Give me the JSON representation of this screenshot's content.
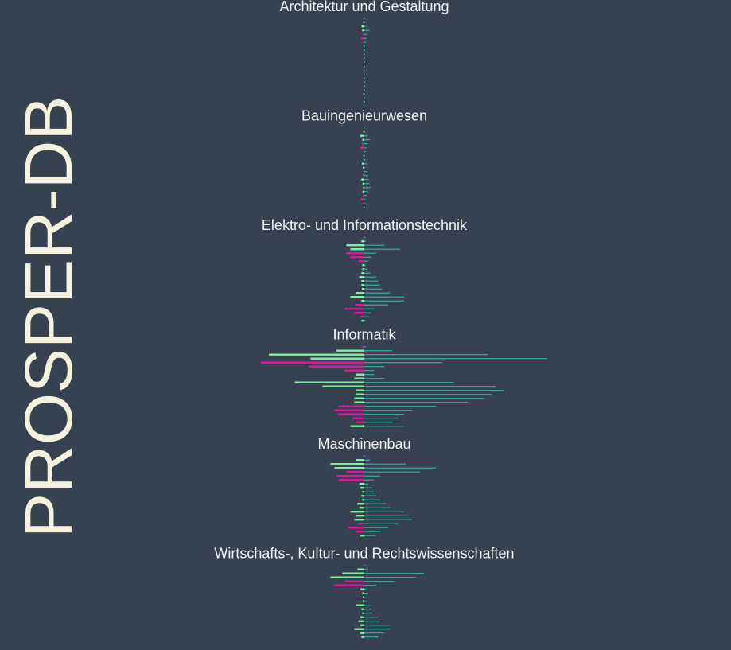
{
  "brand": {
    "title": "PROSPER-DB"
  },
  "colors": {
    "background": "#37414f",
    "green": "#7ef0a2",
    "magenta": "#e0169b",
    "teal": "#2cb5a0",
    "title_text": "#f2f2f2",
    "brand_text": "#f5f1df"
  },
  "chart_data": {
    "type": "bar",
    "orientation": "horizontal",
    "grid": false,
    "legend": "none",
    "series_roles": {
      "left_green": "#7ef0a2",
      "left_magenta": "#e0169b",
      "right_teal": "#2cb5a0"
    },
    "facets": [
      {
        "title": "Architektur und Gestaltung",
        "rows": [
          {
            "l": 0.3,
            "c": "m",
            "r": 0.4
          },
          {
            "l": 0.5,
            "c": "g",
            "r": 0.6
          },
          {
            "l": 1.4,
            "c": "g",
            "r": 1.1
          },
          {
            "l": 1.1,
            "c": "g",
            "r": 2.7
          },
          {
            "l": 0.7,
            "c": "m",
            "r": 1.5
          },
          {
            "l": 1.6,
            "c": "m",
            "r": 1.2
          },
          {
            "l": 0.6,
            "c": "m",
            "r": 0.9
          },
          {
            "l": 0.4,
            "c": "g",
            "r": 0.3
          },
          {
            "l": 0.2,
            "c": "g",
            "r": 0.2
          },
          {
            "l": 0.2,
            "c": "g",
            "r": 0.2
          },
          {
            "l": 0.2,
            "c": "g",
            "r": 0.3
          },
          {
            "l": 0.2,
            "c": "g",
            "r": 0.2
          },
          {
            "l": 0.2,
            "c": "g",
            "r": 0.2
          },
          {
            "l": 0.3,
            "c": "g",
            "r": 0.3
          },
          {
            "l": 0.2,
            "c": "g",
            "r": 0.2
          },
          {
            "l": 0.3,
            "c": "g",
            "r": 0.4
          },
          {
            "l": 0.4,
            "c": "g",
            "r": 0.6
          },
          {
            "l": 0.2,
            "c": "g",
            "r": 0.5
          },
          {
            "l": 0.4,
            "c": "g",
            "r": 0.3
          },
          {
            "l": 0.5,
            "c": "g",
            "r": 0.4
          },
          {
            "l": 0.3,
            "c": "m",
            "r": 0.4
          },
          {
            "l": 0.3,
            "c": "g",
            "r": 0.2
          }
        ]
      },
      {
        "title": "Bauingenieurwesen",
        "rows": [
          {
            "l": 0.3,
            "c": "m",
            "r": 0.3
          },
          {
            "l": 0.5,
            "c": "g",
            "r": 0.5
          },
          {
            "l": 2.1,
            "c": "g",
            "r": 1.5
          },
          {
            "l": 1.0,
            "c": "g",
            "r": 2.9
          },
          {
            "l": 1.2,
            "c": "m",
            "r": 1.8
          },
          {
            "l": 2.0,
            "c": "m",
            "r": 1.0
          },
          {
            "l": 0.6,
            "c": "m",
            "r": 0.7
          },
          {
            "l": 0.5,
            "c": "g",
            "r": 0.4
          },
          {
            "l": 0.4,
            "c": "g",
            "r": 0.6
          },
          {
            "l": 1.2,
            "c": "g",
            "r": 1.3
          },
          {
            "l": 0.8,
            "c": "g",
            "r": 0.5
          },
          {
            "l": 0.3,
            "c": "g",
            "r": 1.2
          },
          {
            "l": 0.5,
            "c": "g",
            "r": 1.8
          },
          {
            "l": 1.5,
            "c": "g",
            "r": 2.2
          },
          {
            "l": 0.9,
            "c": "g",
            "r": 2.6
          },
          {
            "l": 0.6,
            "c": "g",
            "r": 3.2
          },
          {
            "l": 0.9,
            "c": "g",
            "r": 2.0
          },
          {
            "l": 0.8,
            "c": "m",
            "r": 1.4
          },
          {
            "l": 1.9,
            "c": "m",
            "r": 0.8
          },
          {
            "l": 0.6,
            "c": "m",
            "r": 0.5
          },
          {
            "l": 0.3,
            "c": "g",
            "r": 0.4
          }
        ]
      },
      {
        "title": "Elektro- und Informationstechnik",
        "rows": [
          {
            "l": 0.5,
            "c": "m",
            "r": 0.6
          },
          {
            "l": 1.5,
            "c": "g",
            "r": 1.0
          },
          {
            "l": 9.0,
            "c": "g",
            "r": 10.0
          },
          {
            "l": 7.0,
            "c": "g",
            "r": 18.0
          },
          {
            "l": 9.0,
            "c": "m",
            "r": 6.0
          },
          {
            "l": 7.0,
            "c": "m",
            "r": 3.5
          },
          {
            "l": 3.0,
            "c": "m",
            "r": 2.0
          },
          {
            "l": 1.0,
            "c": "g",
            "r": 0.8
          },
          {
            "l": 1.0,
            "c": "g",
            "r": 1.5
          },
          {
            "l": 1.5,
            "c": "g",
            "r": 3.0
          },
          {
            "l": 2.5,
            "c": "g",
            "r": 6.0
          },
          {
            "l": 1.5,
            "c": "g",
            "r": 7.0
          },
          {
            "l": 1.5,
            "c": "g",
            "r": 8.0
          },
          {
            "l": 1.2,
            "c": "g",
            "r": 9.0
          },
          {
            "l": 4.0,
            "c": "g",
            "r": 13.0
          },
          {
            "l": 7.0,
            "c": "g",
            "r": 20.0
          },
          {
            "l": 1.5,
            "c": "g",
            "r": 20.0
          },
          {
            "l": 4.5,
            "c": "m",
            "r": 12.0
          },
          {
            "l": 10.0,
            "c": "m",
            "r": 5.0
          },
          {
            "l": 5.0,
            "c": "m",
            "r": 3.5
          },
          {
            "l": 2.0,
            "c": "m",
            "r": 2.5
          },
          {
            "l": 1.5,
            "c": "g",
            "r": 1.0
          }
        ]
      },
      {
        "title": "Informatik",
        "rows": [
          {
            "l": 1.0,
            "c": "m",
            "r": 0.8
          },
          {
            "l": 14.0,
            "c": "g",
            "r": 14.0
          },
          {
            "l": 48.0,
            "c": "g",
            "r": 62.0
          },
          {
            "l": 27.0,
            "c": "g",
            "r": 92.0
          },
          {
            "l": 52.0,
            "c": "m",
            "r": 39.0
          },
          {
            "l": 28.0,
            "c": "m",
            "r": 10.0
          },
          {
            "l": 10.0,
            "c": "m",
            "r": 5.0
          },
          {
            "l": 4.0,
            "c": "g",
            "r": 5.0
          },
          {
            "l": 5.0,
            "c": "g",
            "r": 10.0
          },
          {
            "l": 35.0,
            "c": "g",
            "r": 45.0
          },
          {
            "l": 21.0,
            "c": "g",
            "r": 66.0
          },
          {
            "l": 4.0,
            "c": "g",
            "r": 70.0
          },
          {
            "l": 4.0,
            "c": "g",
            "r": 64.0
          },
          {
            "l": 5.0,
            "c": "g",
            "r": 60.0
          },
          {
            "l": 5.0,
            "c": "g",
            "r": 52.0
          },
          {
            "l": 13.0,
            "c": "m",
            "r": 36.0
          },
          {
            "l": 15.0,
            "c": "m",
            "r": 24.0
          },
          {
            "l": 13.0,
            "c": "m",
            "r": 20.0
          },
          {
            "l": 6.0,
            "c": "m",
            "r": 17.0
          },
          {
            "l": 4.0,
            "c": "m",
            "r": 14.0
          },
          {
            "l": 7.0,
            "c": "g",
            "r": 20.0
          }
        ]
      },
      {
        "title": "Maschinenbau",
        "rows": [
          {
            "l": 0.6,
            "c": "m",
            "r": 0.6
          },
          {
            "l": 4.0,
            "c": "g",
            "r": 3.0
          },
          {
            "l": 17.0,
            "c": "g",
            "r": 21.0
          },
          {
            "l": 15.0,
            "c": "g",
            "r": 36.0
          },
          {
            "l": 9.0,
            "c": "m",
            "r": 28.0
          },
          {
            "l": 14.0,
            "c": "m",
            "r": 8.0
          },
          {
            "l": 13.0,
            "c": "m",
            "r": 5.0
          },
          {
            "l": 2.5,
            "c": "g",
            "r": 2.0
          },
          {
            "l": 2.0,
            "c": "g",
            "r": 4.0
          },
          {
            "l": 1.0,
            "c": "g",
            "r": 5.0
          },
          {
            "l": 1.5,
            "c": "g",
            "r": 6.0
          },
          {
            "l": 1.0,
            "c": "g",
            "r": 8.0
          },
          {
            "l": 3.5,
            "c": "g",
            "r": 11.0
          },
          {
            "l": 2.5,
            "c": "g",
            "r": 13.0
          },
          {
            "l": 7.0,
            "c": "g",
            "r": 20.0
          },
          {
            "l": 4.0,
            "c": "g",
            "r": 22.0
          },
          {
            "l": 5.0,
            "c": "g",
            "r": 24.0
          },
          {
            "l": 3.0,
            "c": "m",
            "r": 17.0
          },
          {
            "l": 8.0,
            "c": "m",
            "r": 12.0
          },
          {
            "l": 4.0,
            "c": "m",
            "r": 8.0
          },
          {
            "l": 2.0,
            "c": "g",
            "r": 6.0
          }
        ]
      },
      {
        "title": "Wirtschafts-, Kultur- und Rechtswissenschaften",
        "rows": [
          {
            "l": 0.6,
            "c": "m",
            "r": 0.6
          },
          {
            "l": 3.5,
            "c": "g",
            "r": 2.0
          },
          {
            "l": 11.0,
            "c": "g",
            "r": 30.0
          },
          {
            "l": 17.0,
            "c": "g",
            "r": 26.0
          },
          {
            "l": 10.0,
            "c": "m",
            "r": 15.0
          },
          {
            "l": 15.0,
            "c": "m",
            "r": 6.0
          },
          {
            "l": 2.0,
            "c": "g",
            "r": 1.0
          },
          {
            "l": 1.0,
            "c": "g",
            "r": 2.0
          },
          {
            "l": 0.8,
            "c": "g",
            "r": 1.2
          },
          {
            "l": 0.8,
            "c": "g",
            "r": 1.5
          },
          {
            "l": 4.0,
            "c": "g",
            "r": 3.0
          },
          {
            "l": 1.5,
            "c": "g",
            "r": 3.5
          },
          {
            "l": 1.0,
            "c": "g",
            "r": 4.0
          },
          {
            "l": 2.0,
            "c": "g",
            "r": 7.0
          },
          {
            "l": 3.0,
            "c": "g",
            "r": 8.0
          },
          {
            "l": 2.0,
            "c": "g",
            "r": 12.0
          },
          {
            "l": 5.0,
            "c": "g",
            "r": 13.0
          },
          {
            "l": 2.0,
            "c": "g",
            "r": 10.0
          },
          {
            "l": 1.5,
            "c": "g",
            "r": 7.0
          }
        ]
      }
    ]
  }
}
